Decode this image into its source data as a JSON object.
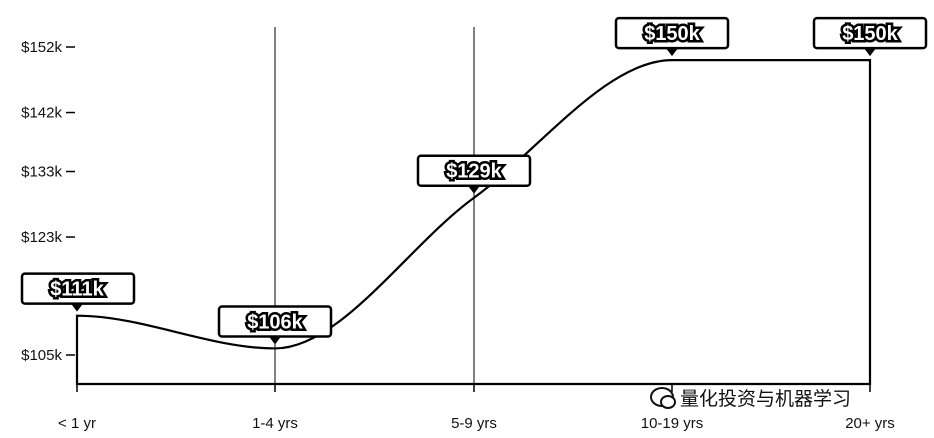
{
  "chart_data": {
    "type": "line",
    "categories": [
      "< 1 yr",
      "1-4 yrs",
      "5-9 yrs",
      "10-19 yrs",
      "20+ yrs"
    ],
    "values": [
      111,
      106,
      129,
      150,
      150
    ],
    "data_labels": [
      "$111k",
      "$106k",
      "$129k",
      "$150k",
      "$150k"
    ],
    "y_ticks": [
      {
        "value": 105,
        "label": "$105k"
      },
      {
        "value": 114,
        "label": "$"
      },
      {
        "value": 123,
        "label": "$123k"
      },
      {
        "value": 133,
        "label": "$133k"
      },
      {
        "value": 142,
        "label": "$142k"
      },
      {
        "value": 152,
        "label": "$152k"
      }
    ],
    "ylim": [
      100.5,
      156.5
    ],
    "title": "",
    "xlabel": "",
    "ylabel": "",
    "grid": "vertical lines at 1-4 yrs and 5-9 yrs",
    "legend": "none"
  },
  "watermark": {
    "icon": "chat-bubbles-icon",
    "text": "量化投资与机器学习"
  }
}
